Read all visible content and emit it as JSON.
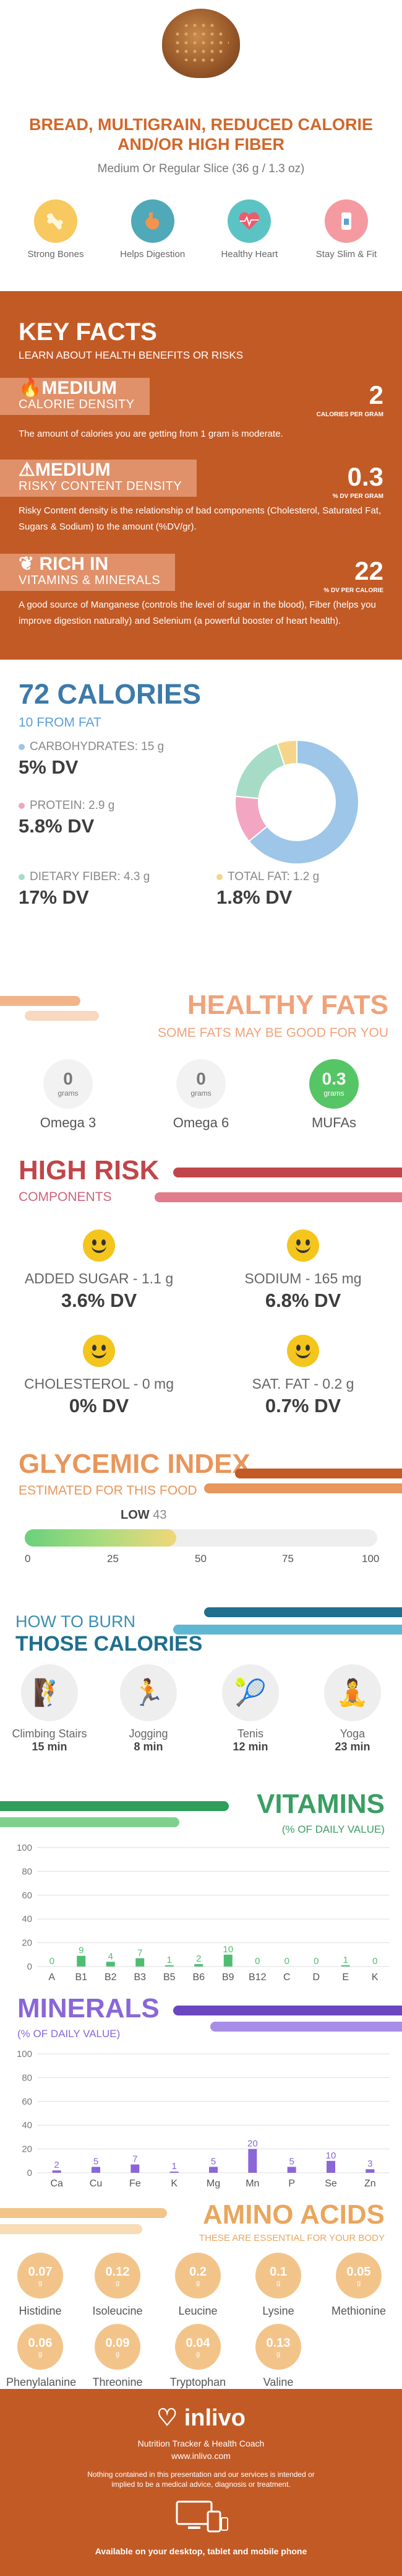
{
  "header": {
    "title": "BREAD, MULTIGRAIN, REDUCED CALORIE AND/OR HIGH FIBER",
    "serving": "Medium Or Regular Slice (36 g / 1.3 oz)",
    "benefits": [
      {
        "label": "Strong Bones",
        "icon": "bone-icon",
        "color": "#f7c95e"
      },
      {
        "label": "Helps Digestion",
        "icon": "stomach-icon",
        "color": "#4fa9b8"
      },
      {
        "label": "Healthy Heart",
        "icon": "heart-icon",
        "color": "#5cc3c5"
      },
      {
        "label": "Stay Slim & Fit",
        "icon": "scale-icon",
        "color": "#f59aa0"
      }
    ]
  },
  "facts": {
    "title": "KEY FACTS",
    "subtitle": "LEARN ABOUT HEALTH BENEFITS OR RISKS",
    "items": [
      {
        "level": "MEDIUM",
        "category": "CALORIE DENSITY",
        "value": "2",
        "unit": "CALORIES PER GRAM",
        "description": "The amount of calories you are getting from 1 gram is moderate.",
        "icon": "fire-icon"
      },
      {
        "level": "MEDIUM",
        "category": "RISKY CONTENT DENSITY",
        "value": "0.3",
        "unit": "% DV PER GRAM",
        "description": "Risky Content density is the relationship of bad components (Cholesterol, Saturated Fat, Sugars & Sodium) to the amount (%DV/gr).",
        "icon": "warning-icon"
      },
      {
        "level": "RICH IN",
        "category": "VITAMINS & MINERALS",
        "value": "22",
        "unit": "% DV PER CALORIE",
        "description": "A good source of Manganese (controls the level of sugar in the blood), Fiber (helps you improve digestion naturally) and Selenium (a powerful booster of heart health).",
        "icon": "leaf-icon"
      }
    ]
  },
  "calories": {
    "title": "72 CALORIES",
    "from_fat": "10 FROM FAT",
    "nutrients": [
      {
        "label": "CARBOHYDRATES: 15 g",
        "dv": "5% DV",
        "color": "#9dc6e8"
      },
      {
        "label": "PROTEIN: 2.9 g",
        "dv": "5.8% DV",
        "color": "#f3a6c2"
      },
      {
        "label": "DIETARY FIBER: 4.3 g",
        "dv": "17% DV",
        "color": "#a6dcc6"
      },
      {
        "label": "TOTAL FAT: 1.2 g",
        "dv": "1.8% DV",
        "color": "#f6d58a"
      }
    ],
    "donut": [
      {
        "name": "Carbohydrates",
        "value": 15,
        "color": "#9dc6e8"
      },
      {
        "name": "Protein",
        "value": 2.9,
        "color": "#f3a6c2"
      },
      {
        "name": "Dietary Fiber",
        "value": 4.3,
        "color": "#a6dcc6"
      },
      {
        "name": "Total Fat",
        "value": 1.2,
        "color": "#f6d58a"
      }
    ]
  },
  "fats": {
    "title": "HEALTHY FATS",
    "subtitle": "SOME FATS MAY BE GOOD FOR YOU",
    "items": [
      {
        "value": "0",
        "unit": "grams",
        "label": "Omega 3"
      },
      {
        "value": "0",
        "unit": "grams",
        "label": "Omega 6"
      },
      {
        "value": "0.3",
        "unit": "grams",
        "label": "MUFAs"
      }
    ]
  },
  "risk": {
    "title": "HIGH RISK",
    "subtitle": "COMPONENTS",
    "items": [
      {
        "label": "ADDED SUGAR - 1.1 g",
        "dv": "3.6% DV"
      },
      {
        "label": "SODIUM - 165 mg",
        "dv": "6.8% DV"
      },
      {
        "label": "CHOLESTEROL - 0 mg",
        "dv": "0% DV"
      },
      {
        "label": "SAT. FAT - 0.2 g",
        "dv": "0.7% DV"
      }
    ]
  },
  "glycemic": {
    "title": "GLYCEMIC INDEX",
    "subtitle": "ESTIMATED FOR THIS FOOD",
    "level": "LOW",
    "value": "43",
    "ticks": [
      "0",
      "25",
      "50",
      "75",
      "100"
    ]
  },
  "burn": {
    "title_top": "HOW TO BURN",
    "title_bottom": "THOSE CALORIES",
    "activities": [
      {
        "name": "Climbing Stairs",
        "time": "15 min",
        "icon": "stairs-icon"
      },
      {
        "name": "Jogging",
        "time": "8 min",
        "icon": "running-icon"
      },
      {
        "name": "Tenis",
        "time": "12 min",
        "icon": "tennis-icon"
      },
      {
        "name": "Yoga",
        "time": "23 min",
        "icon": "yoga-icon"
      }
    ]
  },
  "vitamins": {
    "title": "VITAMINS",
    "subtitle": "(% OF DAILY VALUE)"
  },
  "minerals": {
    "title": "MINERALS",
    "subtitle": "(% OF DAILY VALUE)"
  },
  "chart_data": [
    {
      "type": "bar",
      "title": "VITAMINS",
      "categories": [
        "A",
        "B1",
        "B2",
        "B3",
        "B5",
        "B6",
        "B9",
        "B12",
        "C",
        "D",
        "E",
        "K"
      ],
      "values": [
        0,
        9,
        4,
        7,
        1,
        2,
        10,
        0,
        0,
        0,
        1,
        0
      ],
      "ylim": [
        0,
        100
      ],
      "yticks": [
        "0",
        "20",
        "40",
        "60",
        "80",
        "100"
      ],
      "color": "#4ebd72"
    },
    {
      "type": "bar",
      "title": "MINERALS",
      "categories": [
        "Ca",
        "Cu",
        "Fe",
        "K",
        "Mg",
        "Mn",
        "P",
        "Se",
        "Zn"
      ],
      "values": [
        2,
        5,
        7,
        1,
        5,
        20,
        5,
        10,
        3
      ],
      "ylim": [
        0,
        100
      ],
      "yticks": [
        "0",
        "20",
        "40",
        "60",
        "80",
        "100"
      ],
      "color": "#8a66d8"
    }
  ],
  "amino": {
    "title": "AMINO ACIDS",
    "subtitle": "THESE ARE ESSENTIAL FOR YOUR BODY",
    "unit": "g",
    "items": [
      {
        "name": "Histidine",
        "value": "0.07"
      },
      {
        "name": "Isoleucine",
        "value": "0.12"
      },
      {
        "name": "Leucine",
        "value": "0.2"
      },
      {
        "name": "Lysine",
        "value": "0.1"
      },
      {
        "name": "Methionine",
        "value": "0.05"
      },
      {
        "name": "Phenylalanine",
        "value": "0.06"
      },
      {
        "name": "Threonine",
        "value": "0.09"
      },
      {
        "name": "Tryptophan",
        "value": "0.04"
      },
      {
        "name": "Valine",
        "value": "0.13"
      }
    ]
  },
  "footer": {
    "brand": "inlivo",
    "tagline": "Nutrition Tracker & Health Coach",
    "url": "www.inlivo.com",
    "disclaimer": "Nothing contained in this presentation and our services is intended or implied to be a medical advice, diagnosis or treatment.",
    "devices": "Available on your desktop, tablet and mobile phone"
  }
}
